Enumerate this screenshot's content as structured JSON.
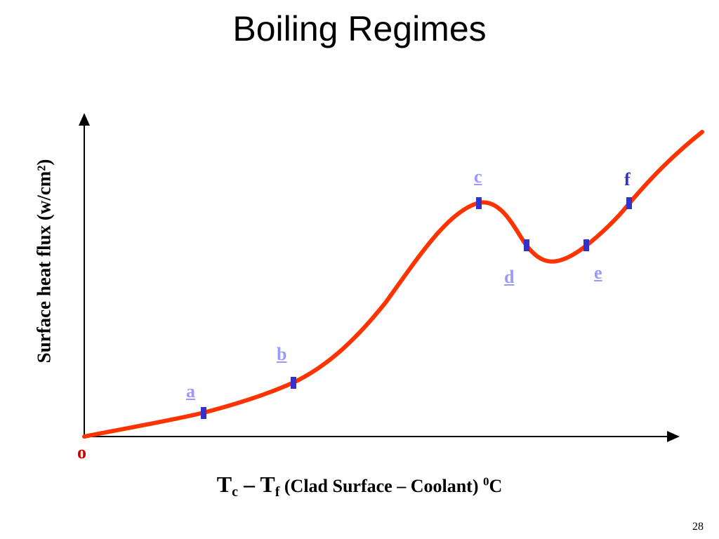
{
  "title": "Boiling Regimes",
  "y_axis_label": "Surface heat flux (w/cm²)",
  "x_axis_label": {
    "t_c": "T",
    "sub_c": "c",
    "dash": " – ",
    "t_f": "T",
    "sub_f": "f",
    "desc": " (Clad Surface – Coolant) ",
    "sup": "0",
    "unit": "C"
  },
  "origin_label": "o",
  "point_labels": {
    "a": "a",
    "b": "b",
    "c": "c",
    "d": "d",
    "e": "e",
    "f": "f"
  },
  "page_number": "28",
  "colors": {
    "curve": "#ff3300",
    "marker": "#3333cc",
    "label": "#9999ff",
    "origin": "#cc0000"
  }
}
